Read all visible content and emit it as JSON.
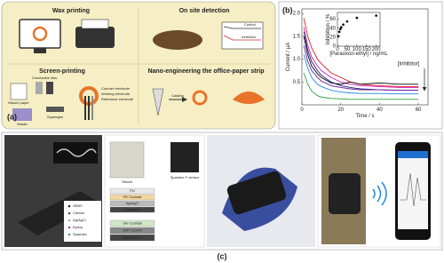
{
  "panels": {
    "a": {
      "label": "(a)",
      "wax_printing": "Wax printing",
      "on_site_detection": "On site detection",
      "screen_printing": "Screen-printing",
      "nano_engineering": "Nano-engineering the office-paper strip",
      "waxed_paper": "Waxed paper",
      "conductive_inks": "Conductive inks",
      "masks": "Masks",
      "squeegee": "Squeegee",
      "counter_electrode": "Counter electrode",
      "working_electrode": "Working electrode",
      "reference_electrode": "Reference electrode",
      "casting": "Casting",
      "control": "Control",
      "inhibition": "Inhibition"
    },
    "b": {
      "label": "(b)"
    },
    "c": {
      "label": "(c)",
      "materials": [
        "SEBS",
        "Carbon",
        "Ag/AgCl",
        "Epoxy",
        "Spandex"
      ],
      "stencil": "Stencil",
      "sensor": "Spandex F sensor",
      "top_layers": [
        "PU",
        "PE Cocktail",
        "Ag/AgCl",
        "Spandex"
      ],
      "bottom_layers": [
        "GK Cocktail",
        "CNT-COOH",
        "Spandex+C"
      ]
    }
  },
  "chart_data": [
    {
      "type": "line",
      "xlabel": "Time / s",
      "ylabel": "Current / µA",
      "annotation": "[Inhibitor]",
      "x": [
        1,
        3,
        5,
        8,
        10,
        15,
        20,
        25,
        30,
        40,
        50,
        60
      ],
      "xlim": [
        0,
        65
      ],
      "xticks": [
        0,
        20,
        40,
        60
      ],
      "ylim": [
        0,
        2.1
      ],
      "yticks": [
        0.5,
        {
          "value": 1,
          "label": "1.0"
        },
        1.5,
        {
          "value": 2,
          "label": "2.0"
        }
      ],
      "series": [
        {
          "color": "#e02020",
          "values": [
            1.9,
            1.5,
            1.25,
            1.0,
            0.9,
            0.7,
            0.6,
            0.5,
            0.45,
            0.42,
            0.4,
            0.4
          ]
        },
        {
          "color": "#d020c0",
          "values": [
            1.7,
            1.3,
            1.05,
            0.85,
            0.75,
            0.6,
            0.5,
            0.45,
            0.42,
            0.4,
            0.38,
            0.38
          ]
        },
        {
          "color": "#1a237e",
          "values": [
            1.6,
            1.2,
            0.95,
            0.75,
            0.65,
            0.5,
            0.42,
            0.38,
            0.35,
            0.33,
            0.32,
            0.32
          ]
        },
        {
          "color": "#000000",
          "values": [
            1.5,
            1.1,
            0.85,
            0.68,
            0.6,
            0.48,
            0.45,
            0.5,
            0.45,
            0.48,
            0.45,
            0.45
          ]
        },
        {
          "color": "#6a1b9a",
          "values": [
            1.3,
            0.95,
            0.75,
            0.6,
            0.52,
            0.42,
            0.38,
            0.35,
            0.33,
            0.33,
            0.32,
            0.32
          ]
        },
        {
          "color": "#1e88e5",
          "values": [
            1.1,
            0.8,
            0.6,
            0.45,
            0.4,
            0.32,
            0.28,
            0.26,
            0.25,
            0.25,
            0.24,
            0.24
          ]
        },
        {
          "color": "#2e9e3e",
          "values": [
            0.7,
            0.45,
            0.3,
            0.2,
            0.17,
            0.14,
            0.13,
            0.12,
            0.12,
            0.12,
            0.12,
            0.12
          ]
        }
      ]
    },
    {
      "type": "scatter",
      "xlabel": "[Paraoxon-ethyl] / ng/mL",
      "ylabel": "Inhibition / %",
      "x": [
        5,
        10,
        15,
        20,
        30,
        50,
        100,
        200
      ],
      "xlim": [
        0,
        220
      ],
      "xticks": [
        0,
        50,
        100,
        150,
        200
      ],
      "ylim": [
        0,
        75
      ],
      "yticks": [
        0,
        20,
        40,
        60
      ],
      "series": [
        {
          "color": "#000000",
          "values": [
            22,
            32,
            38,
            42,
            48,
            55,
            63,
            68
          ]
        }
      ]
    }
  ]
}
